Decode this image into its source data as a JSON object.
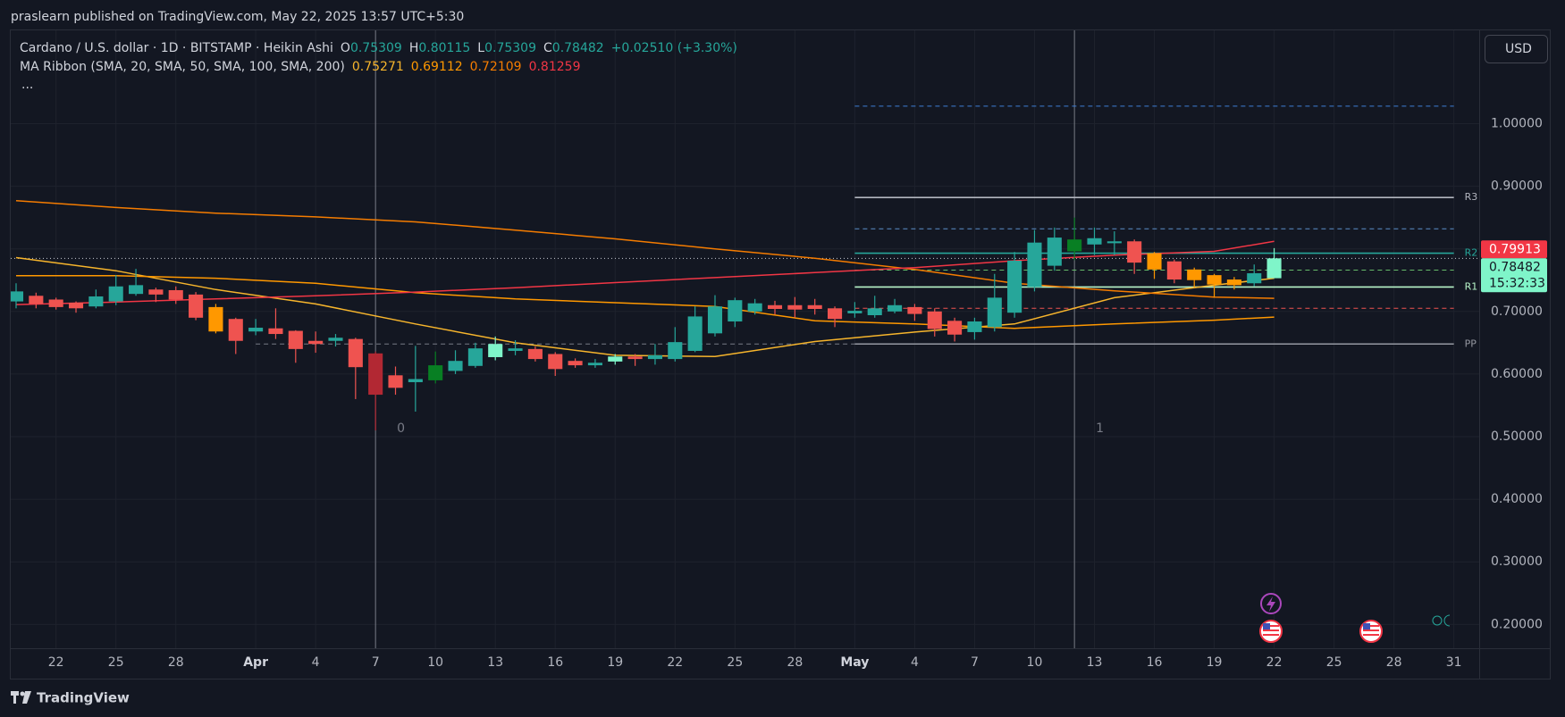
{
  "header": {
    "text": "praslearn published on TradingView.com, May 22, 2025 13:57 UTC+5:30"
  },
  "footer": {
    "brand": "TradingView"
  },
  "chart_data": {
    "type": "candlestick",
    "currency": "USD",
    "legend": {
      "symbol": "Cardano / U.S. dollar · 1D · BITSTAMP · Heikin Ashi",
      "ohlc": [
        {
          "label": "O",
          "value": 0.75309
        },
        {
          "label": "H",
          "value": 0.80115
        },
        {
          "label": "L",
          "value": 0.75309
        },
        {
          "label": "C",
          "value": 0.78482
        }
      ],
      "change": "+0.02510 (+3.30%)",
      "indicator": "MA Ribbon (SMA, 20, SMA, 50, SMA, 100, SMA, 200)",
      "more": "..."
    },
    "x": [
      "2025-03-20",
      "2025-03-21",
      "2025-03-22",
      "2025-03-23",
      "2025-03-24",
      "2025-03-25",
      "2025-03-26",
      "2025-03-27",
      "2025-03-28",
      "2025-03-29",
      "2025-03-30",
      "2025-03-31",
      "2025-04-01",
      "2025-04-02",
      "2025-04-03",
      "2025-04-04",
      "2025-04-05",
      "2025-04-06",
      "2025-04-07",
      "2025-04-08",
      "2025-04-09",
      "2025-04-10",
      "2025-04-11",
      "2025-04-12",
      "2025-04-13",
      "2025-04-14",
      "2025-04-15",
      "2025-04-16",
      "2025-04-17",
      "2025-04-18",
      "2025-04-19",
      "2025-04-20",
      "2025-04-21",
      "2025-04-22",
      "2025-04-23",
      "2025-04-24",
      "2025-04-25",
      "2025-04-26",
      "2025-04-27",
      "2025-04-28",
      "2025-04-29",
      "2025-04-30",
      "2025-05-01",
      "2025-05-02",
      "2025-05-03",
      "2025-05-04",
      "2025-05-05",
      "2025-05-06",
      "2025-05-07",
      "2025-05-08",
      "2025-05-09",
      "2025-05-10",
      "2025-05-11",
      "2025-05-12",
      "2025-05-13",
      "2025-05-14",
      "2025-05-15",
      "2025-05-16",
      "2025-05-17",
      "2025-05-18",
      "2025-05-19",
      "2025-05-20",
      "2025-05-21",
      "2025-05-22"
    ],
    "open": [
      0.716,
      0.725,
      0.719,
      0.714,
      0.708,
      0.716,
      0.728,
      0.735,
      0.734,
      0.727,
      0.707,
      0.688,
      0.668,
      0.673,
      0.669,
      0.653,
      0.653,
      0.656,
      0.633,
      0.598,
      0.587,
      0.59,
      0.605,
      0.613,
      0.627,
      0.637,
      0.64,
      0.632,
      0.621,
      0.614,
      0.62,
      0.628,
      0.624,
      0.624,
      0.637,
      0.665,
      0.684,
      0.7,
      0.71,
      0.71,
      0.71,
      0.705,
      0.697,
      0.694,
      0.7,
      0.707,
      0.7,
      0.685,
      0.667,
      0.675,
      0.698,
      0.739,
      0.773,
      0.796,
      0.807,
      0.809,
      0.812,
      0.793,
      0.78,
      0.767,
      0.758,
      0.751,
      0.745,
      0.75309
    ],
    "high": [
      0.745,
      0.73,
      0.722,
      0.716,
      0.735,
      0.758,
      0.768,
      0.738,
      0.74,
      0.731,
      0.712,
      0.69,
      0.688,
      0.705,
      0.67,
      0.668,
      0.664,
      0.658,
      0.636,
      0.612,
      0.645,
      0.636,
      0.638,
      0.65,
      0.66,
      0.654,
      0.644,
      0.635,
      0.625,
      0.624,
      0.632,
      0.632,
      0.648,
      0.675,
      0.708,
      0.726,
      0.722,
      0.72,
      0.717,
      0.723,
      0.72,
      0.708,
      0.715,
      0.725,
      0.72,
      0.712,
      0.705,
      0.69,
      0.69,
      0.76,
      0.795,
      0.83,
      0.834,
      0.85,
      0.834,
      0.828,
      0.815,
      0.795,
      0.783,
      0.77,
      0.76,
      0.755,
      0.775,
      0.80115
    ],
    "low": [
      0.705,
      0.705,
      0.703,
      0.698,
      0.705,
      0.71,
      0.725,
      0.715,
      0.712,
      0.686,
      0.665,
      0.632,
      0.662,
      0.656,
      0.618,
      0.634,
      0.644,
      0.56,
      0.51,
      0.567,
      0.54,
      0.585,
      0.6,
      0.61,
      0.622,
      0.63,
      0.62,
      0.597,
      0.61,
      0.61,
      0.615,
      0.613,
      0.615,
      0.62,
      0.635,
      0.66,
      0.675,
      0.695,
      0.695,
      0.69,
      0.695,
      0.675,
      0.69,
      0.69,
      0.697,
      0.685,
      0.66,
      0.652,
      0.655,
      0.668,
      0.69,
      0.732,
      0.765,
      0.782,
      0.79,
      0.79,
      0.76,
      0.752,
      0.745,
      0.738,
      0.722,
      0.735,
      0.74,
      0.75309
    ],
    "close": [
      0.732,
      0.712,
      0.707,
      0.705,
      0.724,
      0.74,
      0.742,
      0.727,
      0.719,
      0.69,
      0.668,
      0.653,
      0.674,
      0.664,
      0.64,
      0.648,
      0.658,
      0.611,
      0.567,
      0.578,
      0.592,
      0.614,
      0.621,
      0.641,
      0.648,
      0.641,
      0.624,
      0.608,
      0.614,
      0.618,
      0.628,
      0.624,
      0.63,
      0.651,
      0.692,
      0.708,
      0.718,
      0.713,
      0.704,
      0.703,
      0.704,
      0.688,
      0.701,
      0.705,
      0.71,
      0.696,
      0.672,
      0.663,
      0.684,
      0.722,
      0.781,
      0.81,
      0.818,
      0.815,
      0.817,
      0.812,
      0.778,
      0.767,
      0.751,
      0.75,
      0.743,
      0.742,
      0.761,
      0.78482
    ],
    "colors": [
      "#26a69a",
      "#ef5350",
      "#ef5350",
      "#ef5350",
      "#26a69a",
      "#26a69a",
      "#26a69a",
      "#ef5350",
      "#ef5350",
      "#ef5350",
      "#ff9800",
      "#ef5350",
      "#26a69a",
      "#ef5350",
      "#ef5350",
      "#ef5350",
      "#26a69a",
      "#ef5350",
      "#b22833",
      "#ef5350",
      "#26a69a",
      "#087f23",
      "#26a69a",
      "#26a69a",
      "#7ff5c9",
      "#26a69a",
      "#ef5350",
      "#ef5350",
      "#ef5350",
      "#26a69a",
      "#7ff5c9",
      "#ef5350",
      "#26a69a",
      "#26a69a",
      "#26a69a",
      "#26a69a",
      "#26a69a",
      "#26a69a",
      "#ef5350",
      "#ef5350",
      "#ef5350",
      "#ef5350",
      "#26a69a",
      "#26a69a",
      "#26a69a",
      "#ef5350",
      "#ef5350",
      "#ef5350",
      "#26a69a",
      "#26a69a",
      "#26a69a",
      "#26a69a",
      "#26a69a",
      "#087f23",
      "#26a69a",
      "#26a69a",
      "#ef5350",
      "#ff9800",
      "#ef5350",
      "#ff9800",
      "#ff9800",
      "#ff9800",
      "#26a69a",
      "#7ff5c9"
    ],
    "ma_x": [
      "2025-03-20",
      "2025-03-25",
      "2025-03-30",
      "2025-04-04",
      "2025-04-09",
      "2025-04-14",
      "2025-04-19",
      "2025-04-24",
      "2025-04-29",
      "2025-05-04",
      "2025-05-09",
      "2025-05-14",
      "2025-05-19",
      "2025-05-22"
    ],
    "ma_series": [
      {
        "color": "#f7b52c",
        "legend_value": 0.75271,
        "values": [
          0.786,
          0.765,
          0.735,
          0.712,
          0.68,
          0.65,
          0.63,
          0.628,
          0.652,
          0.667,
          0.68,
          0.722,
          0.742,
          0.753
        ]
      },
      {
        "color": "#ff9800",
        "legend_value": 0.69112,
        "values": [
          0.757,
          0.757,
          0.753,
          0.745,
          0.73,
          0.72,
          0.714,
          0.708,
          0.685,
          0.68,
          0.673,
          0.68,
          0.686,
          0.691
        ]
      },
      {
        "color": "#f57c00",
        "legend_value": 0.72109,
        "values": [
          0.877,
          0.866,
          0.857,
          0.851,
          0.843,
          0.83,
          0.816,
          0.8,
          0.785,
          0.767,
          0.745,
          0.733,
          0.723,
          0.721
        ]
      },
      {
        "color": "#f23645",
        "legend_value": 0.81259,
        "values": [
          0.711,
          0.715,
          0.72,
          0.725,
          0.731,
          0.738,
          0.746,
          0.754,
          0.762,
          0.77,
          0.781,
          0.79,
          0.796,
          0.812
        ]
      }
    ],
    "pivots": [
      {
        "value": 1.028,
        "color": "#3f7fd6",
        "style": "dashed",
        "from": "2025-05-01",
        "to": "2025-05-31"
      },
      {
        "label": "R3",
        "value": 0.882,
        "color": "#b2b5be",
        "style": "solid",
        "from": "2025-05-01",
        "to": "2025-05-31"
      },
      {
        "value": 0.832,
        "color": "#5d8fc9",
        "style": "dashed",
        "from": "2025-05-01",
        "to": "2025-05-31"
      },
      {
        "label": "R2",
        "value": 0.793,
        "color": "#26a69a",
        "style": "solid",
        "from": "2025-05-01",
        "to": "2025-05-31"
      },
      {
        "value": 0.766,
        "color": "#66bb6a",
        "style": "dashed",
        "from": "2025-05-01",
        "to": "2025-05-31"
      },
      {
        "label": "R1",
        "value": 0.739,
        "color": "#b9f6ca",
        "style": "solid",
        "from": "2025-05-01",
        "to": "2025-05-31"
      },
      {
        "value": 0.705,
        "color": "#ef5350",
        "style": "dashed",
        "from": "2025-05-01",
        "to": "2025-05-31"
      },
      {
        "label": "PP",
        "value": 0.648,
        "color": "#9598a1",
        "style": "solid",
        "from": "2025-05-01",
        "to": "2025-05-31"
      },
      {
        "value": 0.648,
        "color": "#787b86",
        "style": "dashed",
        "from": "2025-04-01",
        "to": "2025-05-01"
      }
    ],
    "markers": [
      {
        "x": "2025-04-07",
        "label": "0"
      },
      {
        "x": "2025-05-12",
        "label": "1"
      }
    ],
    "price_labels": [
      {
        "value": 0.79913,
        "color": "#f23645"
      },
      {
        "value": 0.78482,
        "color": "#7ff5c9",
        "countdown": "15:32:33"
      }
    ],
    "xlim": [
      "2025-03-20",
      "2025-06-01"
    ],
    "ylim": [
      0.162,
      1.149
    ],
    "xticks": [
      {
        "value": "2025-03-22",
        "label": "22"
      },
      {
        "value": "2025-03-25",
        "label": "25"
      },
      {
        "value": "2025-03-28",
        "label": "28"
      },
      {
        "value": "2025-04-01",
        "label": "Apr"
      },
      {
        "value": "2025-04-04",
        "label": "4"
      },
      {
        "value": "2025-04-07",
        "label": "7"
      },
      {
        "value": "2025-04-10",
        "label": "10"
      },
      {
        "value": "2025-04-13",
        "label": "13"
      },
      {
        "value": "2025-04-16",
        "label": "16"
      },
      {
        "value": "2025-04-19",
        "label": "19"
      },
      {
        "value": "2025-04-22",
        "label": "22"
      },
      {
        "value": "2025-04-25",
        "label": "25"
      },
      {
        "value": "2025-04-28",
        "label": "28"
      },
      {
        "value": "2025-05-01",
        "label": "May"
      },
      {
        "value": "2025-05-04",
        "label": "4"
      },
      {
        "value": "2025-05-07",
        "label": "7"
      },
      {
        "value": "2025-05-10",
        "label": "10"
      },
      {
        "value": "2025-05-13",
        "label": "13"
      },
      {
        "value": "2025-05-16",
        "label": "16"
      },
      {
        "value": "2025-05-19",
        "label": "19"
      },
      {
        "value": "2025-05-22",
        "label": "22"
      },
      {
        "value": "2025-05-25",
        "label": "25"
      },
      {
        "value": "2025-05-28",
        "label": "28"
      },
      {
        "value": "2025-05-31",
        "label": "31"
      }
    ],
    "yticks": [
      {
        "value": 0.2,
        "label": "0.20000"
      },
      {
        "value": 0.3,
        "label": "0.30000"
      },
      {
        "value": 0.4,
        "label": "0.40000"
      },
      {
        "value": 0.5,
        "label": "0.50000"
      },
      {
        "value": 0.6,
        "label": "0.60000"
      },
      {
        "value": 0.7,
        "label": "0.70000"
      },
      {
        "value": 0.8,
        "label": "0.80000"
      },
      {
        "value": 0.9,
        "label": "0.90000"
      },
      {
        "value": 1.0,
        "label": "1.00000"
      }
    ],
    "grid": true
  }
}
